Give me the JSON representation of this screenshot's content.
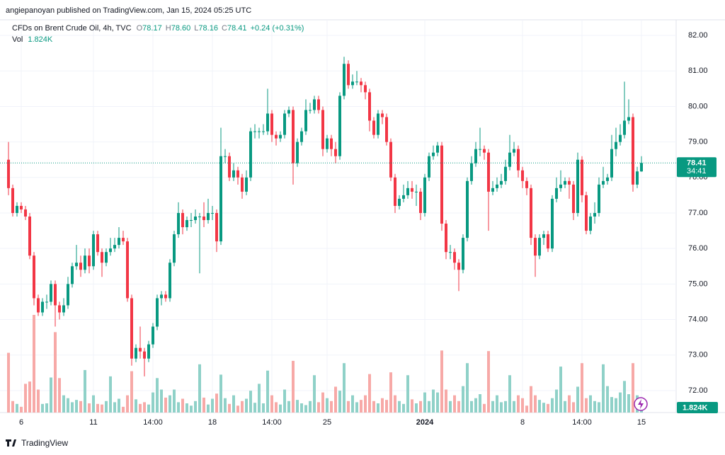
{
  "header": {
    "publisher": "angiepanoyan published on TradingView.com, Jan 15, 2024 05:25 UTC"
  },
  "chart_data": {
    "type": "candlestick",
    "title": "CFDs on Brent Crude Oil, 4h, TVC",
    "ohlc_legend": {
      "o_label": "O",
      "o": "78.17",
      "h_label": "H",
      "h": "78.60",
      "l_label": "L",
      "l": "78.16",
      "c_label": "C",
      "c": "78.41",
      "change": "+0.24 (+0.31%)"
    },
    "volume_title": "Vol",
    "volume_legend": "1.824K",
    "price_badge": "78.41",
    "countdown": "34:41",
    "volume_badge": "1.824K",
    "up_color": "#089981",
    "down_color": "#f23645",
    "up_volume_color": "#8fd1c8",
    "down_volume_color": "#f7a9a7",
    "ylim": [
      71.38,
      82.44
    ],
    "yticks": [
      {
        "value": 72,
        "label": "72.00"
      },
      {
        "value": 73,
        "label": "73.00"
      },
      {
        "value": 74,
        "label": "74.00"
      },
      {
        "value": 75,
        "label": "75.00"
      },
      {
        "value": 76,
        "label": "76.00"
      },
      {
        "value": 77,
        "label": "77.00"
      },
      {
        "value": 78,
        "label": "78.00"
      },
      {
        "value": 79,
        "label": "79.00"
      },
      {
        "value": 80,
        "label": "80.00"
      },
      {
        "value": 81,
        "label": "81.00"
      },
      {
        "value": 82,
        "label": "82.00"
      }
    ],
    "categories": [
      null,
      null,
      null,
      "6",
      null,
      null,
      null,
      null,
      null,
      null,
      null,
      null,
      null,
      null,
      null,
      null,
      null,
      null,
      null,
      null,
      "11",
      null,
      null,
      null,
      null,
      null,
      null,
      null,
      null,
      null,
      null,
      null,
      null,
      null,
      "14:00",
      null,
      null,
      null,
      null,
      null,
      null,
      null,
      null,
      null,
      null,
      null,
      null,
      null,
      "18",
      null,
      null,
      null,
      null,
      null,
      null,
      null,
      null,
      null,
      null,
      null,
      null,
      null,
      "14:00",
      null,
      null,
      null,
      null,
      null,
      null,
      null,
      null,
      null,
      null,
      null,
      null,
      "25",
      null,
      null,
      null,
      null,
      null,
      null,
      null,
      null,
      null,
      null,
      null,
      null,
      null,
      null,
      null,
      null,
      null,
      null,
      null,
      null,
      null,
      null,
      "2024",
      null,
      null,
      null,
      null,
      null,
      null,
      null,
      null,
      null,
      null,
      null,
      null,
      null,
      null,
      null,
      null,
      null,
      null,
      null,
      null,
      null,
      null,
      "8",
      null,
      null,
      null,
      null,
      null,
      null,
      null,
      null,
      null,
      null,
      null,
      null,
      null,
      "14:00",
      null,
      null,
      null,
      null,
      null,
      null,
      null,
      null,
      null,
      null,
      null,
      null,
      null,
      "15"
    ],
    "open": [
      78.5,
      77.7,
      77.0,
      77.2,
      77.1,
      76.9,
      75.8,
      74.6,
      74.2,
      74.5,
      74.5,
      75.0,
      74.4,
      74.2,
      74.4,
      75.0,
      75.5,
      75.6,
      75.4,
      75.8,
      75.5,
      76.4,
      75.9,
      75.6,
      75.9,
      76.0,
      76.1,
      76.3,
      76.2,
      74.6,
      72.9,
      73.2,
      73.1,
      72.9,
      73.3,
      73.8,
      74.6,
      74.7,
      74.6,
      75.6,
      76.4,
      77.0,
      76.6,
      76.8,
      76.8,
      76.9,
      76.9,
      76.8,
      77.0,
      77.0,
      76.2,
      78.6,
      78.6,
      78.0,
      78.2,
      78.0,
      77.6,
      78.0,
      79.3,
      79.3,
      79.3,
      79.3,
      79.8,
      79.2,
      79.1,
      79.2,
      79.8,
      79.9,
      78.4,
      79.0,
      79.3,
      79.9,
      79.9,
      80.2,
      79.9,
      78.8,
      79.1,
      78.8,
      78.6,
      80.3,
      81.2,
      80.6,
      80.7,
      80.7,
      80.6,
      80.4,
      79.6,
      79.2,
      79.8,
      79.7,
      79.0,
      78.0,
      77.2,
      77.4,
      77.5,
      77.7,
      77.6,
      77.6,
      77.0,
      78.0,
      78.6,
      78.7,
      78.9,
      76.7,
      75.9,
      75.9,
      75.6,
      75.4,
      76.3,
      77.9,
      78.4,
      78.8,
      78.8,
      78.7,
      77.6,
      77.7,
      77.8,
      77.9,
      78.3,
      78.7,
      78.8,
      78.2,
      77.9,
      77.7,
      76.3,
      75.8,
      76.3,
      76.4,
      76.0,
      77.4,
      77.7,
      77.8,
      77.9,
      77.8,
      77.0,
      78.5,
      77.5,
      76.5,
      76.9,
      77.0,
      77.8,
      77.9,
      78.0,
      78.8,
      79.0,
      79.2,
      79.6,
      79.7,
      77.8,
      78.17
    ],
    "high": [
      79.0,
      77.8,
      77.3,
      77.3,
      77.2,
      77.0,
      75.9,
      74.7,
      74.6,
      74.7,
      75.1,
      75.1,
      74.5,
      74.6,
      75.2,
      75.6,
      76.1,
      75.8,
      76.0,
      76.0,
      76.5,
      76.5,
      76.0,
      76.0,
      76.3,
      76.3,
      76.6,
      76.5,
      76.3,
      74.7,
      73.3,
      73.8,
      73.2,
      73.4,
      73.9,
      74.7,
      74.8,
      74.8,
      75.7,
      76.5,
      77.3,
      77.1,
      76.9,
      77.0,
      77.1,
      77.0,
      77.3,
      77.4,
      77.2,
      77.1,
      79.4,
      78.8,
      78.7,
      78.4,
      78.3,
      78.1,
      78.2,
      79.4,
      79.5,
      79.4,
      79.5,
      80.5,
      79.9,
      79.3,
      79.3,
      79.9,
      80.0,
      80.0,
      79.1,
      79.4,
      80.2,
      80.1,
      80.3,
      80.3,
      80.0,
      79.2,
      79.2,
      79.0,
      80.4,
      81.4,
      81.3,
      80.9,
      81.0,
      80.8,
      80.7,
      80.5,
      79.7,
      79.9,
      79.9,
      79.8,
      79.1,
      78.1,
      77.5,
      77.8,
      77.9,
      77.9,
      77.8,
      77.7,
      78.1,
      78.7,
      78.9,
      79.0,
      79.0,
      76.8,
      76.1,
      76.0,
      75.7,
      76.4,
      78.0,
      78.6,
      79.0,
      79.4,
      78.9,
      78.8,
      77.9,
      78.0,
      78.1,
      78.5,
      79.2,
      79.0,
      78.9,
      78.3,
      78.0,
      77.8,
      76.4,
      76.4,
      76.5,
      76.5,
      77.5,
      78.0,
      78.2,
      78.0,
      78.0,
      77.9,
      78.7,
      78.6,
      77.6,
      77.0,
      77.3,
      78.0,
      78.3,
      78.1,
      79.2,
      79.4,
      79.5,
      80.7,
      80.2,
      79.8,
      78.3,
      78.6
    ],
    "low": [
      77.5,
      76.9,
      76.9,
      77.0,
      76.8,
      75.7,
      74.4,
      74.1,
      74.1,
      74.3,
      74.4,
      73.8,
      74.0,
      74.1,
      74.3,
      74.9,
      75.4,
      75.2,
      75.3,
      75.3,
      75.4,
      75.8,
      75.2,
      75.5,
      75.8,
      75.9,
      76.0,
      76.1,
      74.5,
      72.7,
      72.8,
      72.9,
      72.4,
      72.8,
      73.2,
      73.7,
      74.4,
      74.5,
      74.5,
      75.5,
      76.3,
      76.4,
      76.5,
      76.6,
      76.7,
      75.3,
      76.6,
      76.7,
      76.8,
      75.9,
      76.1,
      78.4,
      77.9,
      77.9,
      77.8,
      77.4,
      77.5,
      77.9,
      79.1,
      79.1,
      79.2,
      79.2,
      79.0,
      78.9,
      79.0,
      79.1,
      79.7,
      77.8,
      78.3,
      78.9,
      79.2,
      79.8,
      79.8,
      79.8,
      78.6,
      78.7,
      78.6,
      78.4,
      78.5,
      80.2,
      80.5,
      80.5,
      80.6,
      80.4,
      80.2,
      79.3,
      79.1,
      79.1,
      79.5,
      78.9,
      77.9,
      77.0,
      77.1,
      77.3,
      77.4,
      77.4,
      77.2,
      76.8,
      76.9,
      77.9,
      78.5,
      78.6,
      76.5,
      75.7,
      75.7,
      75.4,
      74.8,
      75.3,
      76.2,
      77.8,
      78.3,
      78.6,
      78.5,
      76.5,
      77.5,
      77.6,
      77.7,
      77.8,
      78.2,
      78.6,
      78.0,
      77.7,
      77.5,
      76.1,
      75.2,
      75.7,
      76.1,
      75.9,
      75.9,
      77.3,
      77.6,
      77.7,
      77.4,
      76.8,
      76.9,
      77.3,
      76.4,
      76.4,
      76.7,
      76.9,
      77.7,
      77.8,
      77.9,
      78.6,
      78.9,
      79.1,
      79.5,
      77.6,
      77.7,
      78.16
    ],
    "close": [
      77.7,
      77.0,
      77.2,
      77.1,
      76.9,
      75.8,
      74.6,
      74.2,
      74.5,
      74.5,
      75.0,
      74.4,
      74.2,
      74.4,
      75.0,
      75.5,
      75.6,
      75.4,
      75.8,
      75.5,
      76.4,
      75.9,
      75.6,
      75.9,
      76.0,
      76.1,
      76.3,
      76.2,
      74.6,
      72.9,
      73.2,
      73.1,
      72.9,
      73.3,
      73.8,
      74.6,
      74.7,
      74.6,
      75.6,
      76.4,
      77.0,
      76.6,
      76.8,
      76.8,
      76.9,
      76.9,
      76.8,
      77.0,
      77.0,
      76.2,
      78.6,
      78.6,
      78.0,
      78.2,
      78.0,
      77.6,
      78.0,
      79.3,
      79.3,
      79.3,
      79.3,
      79.8,
      79.2,
      79.1,
      79.2,
      79.8,
      79.9,
      78.4,
      79.0,
      79.3,
      79.9,
      79.9,
      80.2,
      79.9,
      78.8,
      79.1,
      78.8,
      78.6,
      80.3,
      81.2,
      80.6,
      80.7,
      80.7,
      80.6,
      80.4,
      79.6,
      79.2,
      79.8,
      79.7,
      79.0,
      78.0,
      77.2,
      77.4,
      77.5,
      77.7,
      77.6,
      77.6,
      77.0,
      78.0,
      78.6,
      78.7,
      78.9,
      76.7,
      75.9,
      75.9,
      75.6,
      75.4,
      76.3,
      77.9,
      78.4,
      78.8,
      78.8,
      78.7,
      77.6,
      77.7,
      77.8,
      77.9,
      78.3,
      78.7,
      78.8,
      78.2,
      77.9,
      77.7,
      76.3,
      75.8,
      76.3,
      76.4,
      76.0,
      77.4,
      77.7,
      77.8,
      77.9,
      77.8,
      77.0,
      78.5,
      77.5,
      76.5,
      76.9,
      77.0,
      77.8,
      77.9,
      78.0,
      78.8,
      79.0,
      79.2,
      79.6,
      79.7,
      77.8,
      78.17,
      78.41
    ],
    "volume": [
      10.4,
      2.0,
      1.5,
      1.0,
      5.0,
      5.4,
      17.0,
      4.0,
      1.5,
      1.6,
      6.1,
      14.0,
      6.0,
      3.0,
      2.5,
      1.8,
      2.2,
      2.0,
      7.4,
      1.6,
      3.0,
      1.5,
      1.4,
      2.0,
      6.3,
      1.8,
      2.4,
      1.0,
      3.0,
      7.2,
      2.3,
      1.5,
      1.8,
      1.4,
      3.5,
      6.0,
      4.0,
      2.6,
      3.0,
      4.0,
      1.8,
      2.4,
      1.6,
      1.2,
      2.0,
      8.4,
      2.6,
      1.4,
      2.4,
      3.3,
      6.6,
      2.5,
      1.5,
      3.0,
      1.2,
      2.0,
      2.4,
      3.8,
      1.7,
      5.0,
      1.6,
      7.3,
      3.0,
      1.8,
      1.4,
      4.0,
      2.0,
      9.0,
      2.2,
      1.6,
      1.3,
      2.0,
      6.5,
      1.8,
      3.5,
      2.5,
      2.0,
      4.5,
      3.8,
      8.6,
      2.0,
      3.0,
      1.8,
      2.2,
      3.0,
      6.7,
      2.0,
      1.6,
      2.5,
      2.2,
      7.0,
      3.0,
      2.0,
      1.5,
      6.5,
      2.3,
      1.6,
      2.0,
      3.5,
      2.0,
      4.0,
      3.5,
      10.8,
      4.0,
      2.0,
      3.0,
      2.0,
      4.6,
      8.6,
      2.0,
      2.5,
      3.2,
      1.5,
      10.7,
      2.0,
      3.0,
      1.8,
      2.0,
      6.5,
      2.0,
      3.0,
      2.5,
      1.2,
      4.6,
      3.0,
      2.2,
      1.7,
      1.5,
      2.5,
      4.0,
      8.0,
      2.0,
      3.0,
      1.8,
      4.5,
      8.6,
      2.5,
      3.0,
      2.0,
      1.8,
      8.4,
      4.6,
      2.7,
      2.5,
      3.5,
      5.5,
      3.2,
      8.6,
      3.0,
      1.824
    ]
  },
  "footer": {
    "brand": "TradingView"
  }
}
